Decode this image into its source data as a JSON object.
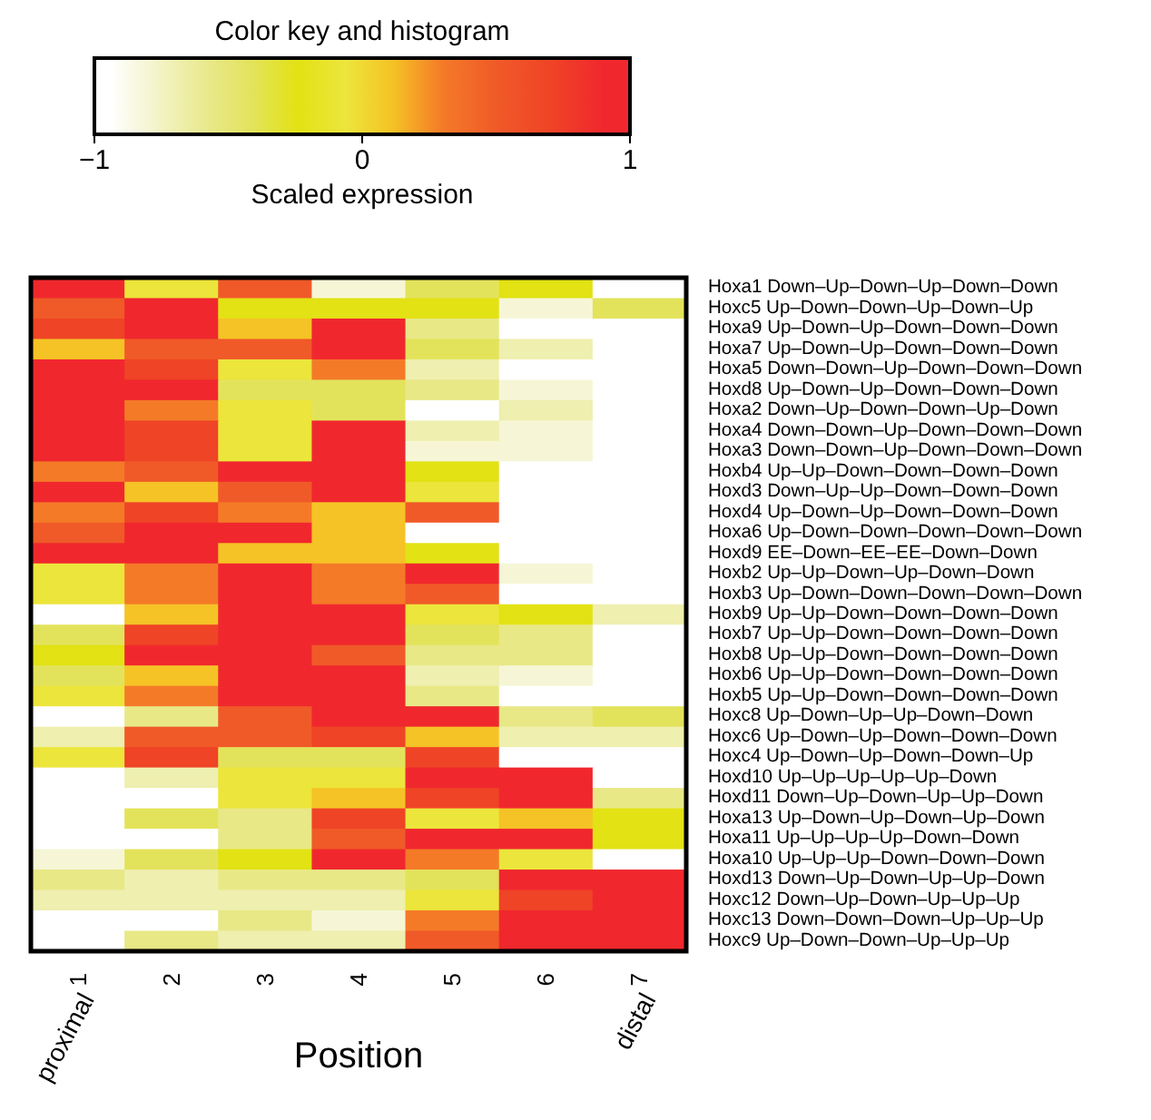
{
  "chart_data": {
    "type": "heatmap",
    "legend_title": "Color key and histogram",
    "clabel": "Scaled expression",
    "xlabel": "Position",
    "annotations": [
      "proximal",
      "distal"
    ],
    "clim": [
      -1,
      1
    ],
    "cticks": [
      -1,
      0,
      1
    ],
    "categories": [
      "1",
      "2",
      "3",
      "4",
      "5",
      "6",
      "7"
    ],
    "y_categories": [
      "Hoxa1 Down–Up–Down–Up–Down–Down",
      "Hoxc5 Up–Down–Down–Up–Down–Up",
      "Hoxa9 Up–Down–Up–Down–Down–Down",
      "Hoxa7 Up–Down–Up–Down–Down–Down",
      "Hoxa5 Down–Down–Up–Down–Down–Down",
      "Hoxd8 Up–Down–Up–Down–Down–Down",
      "Hoxa2 Down–Up–Down–Down–Up–Down",
      "Hoxa4 Down–Down–Up–Down–Down–Down",
      "Hoxa3 Down–Down–Up–Down–Down–Down",
      "Hoxb4 Up–Up–Down–Down–Down–Down",
      "Hoxd3 Down–Up–Up–Down–Down–Down",
      "Hoxd4 Up–Down–Up–Down–Down–Down",
      "Hoxa6 Up–Down–Down–Down–Down–Down",
      "Hoxd9 EE–Down–EE–EE–Down–Down",
      "Hoxb2 Up–Up–Down–Up–Down–Down",
      "Hoxb3 Up–Down–Down–Down–Down–Down",
      "Hoxb9 Up–Up–Down–Down–Down–Down",
      "Hoxb7 Up–Up–Down–Down–Down–Down",
      "Hoxb8 Up–Up–Down–Down–Down–Down",
      "Hoxb6 Up–Up–Down–Down–Down–Down",
      "Hoxb5 Up–Up–Down–Down–Down–Down",
      "Hoxc8 Up–Down–Up–Up–Down–Down",
      "Hoxc6 Up–Down–Up–Down–Down–Down",
      "Hoxc4 Up–Down–Up–Down–Down–Up",
      "Hoxd10 Up–Up–Up–Up–Up–Down",
      "Hoxd11 Down–Up–Down–Up–Up–Down",
      "Hoxa13 Up–Down–Up–Down–Up–Down",
      "Hoxa11 Up–Up–Up–Up–Down–Down",
      "Hoxa10 Up–Up–Up–Down–Down–Down",
      "Hoxd13 Down–Up–Down–Up–Up–Down",
      "Hoxc12 Down–Up–Down–Up–Up–Up",
      "Hoxc13 Down–Down–Down–Up–Up–Up",
      "Hoxc9 Up–Down–Down–Up–Up–Up"
    ],
    "cells": [
      [
        0.9,
        -0.06,
        0.5,
        -0.81,
        -0.41,
        -0.24,
        -0.94
      ],
      [
        0.5,
        0.9,
        -0.24,
        -0.24,
        -0.24,
        -0.81,
        -0.41
      ],
      [
        0.7,
        0.9,
        0.11,
        0.9,
        -0.56,
        -0.94,
        -0.94
      ],
      [
        0.11,
        0.5,
        0.5,
        0.9,
        -0.41,
        -0.69,
        -0.94
      ],
      [
        0.9,
        0.7,
        -0.06,
        0.3,
        -0.69,
        -0.94,
        -0.94
      ],
      [
        0.9,
        0.9,
        -0.41,
        -0.41,
        -0.56,
        -0.81,
        -0.94
      ],
      [
        0.9,
        0.3,
        -0.06,
        -0.41,
        -0.94,
        -0.69,
        -0.94
      ],
      [
        0.9,
        0.7,
        -0.06,
        0.9,
        -0.69,
        -0.81,
        -0.94
      ],
      [
        0.9,
        0.7,
        -0.06,
        0.9,
        -0.81,
        -0.81,
        -0.94
      ],
      [
        0.3,
        0.5,
        0.9,
        0.9,
        -0.24,
        -0.94,
        -0.94
      ],
      [
        0.9,
        0.11,
        0.5,
        0.9,
        -0.06,
        -0.94,
        -0.94
      ],
      [
        0.3,
        0.7,
        0.3,
        0.11,
        0.5,
        -0.94,
        -0.94
      ],
      [
        0.5,
        0.9,
        0.9,
        0.11,
        -0.94,
        -0.94,
        -0.94
      ],
      [
        0.9,
        0.9,
        0.11,
        0.11,
        -0.24,
        -0.94,
        -0.94
      ],
      [
        -0.06,
        0.3,
        0.9,
        0.3,
        0.9,
        -0.81,
        -0.94
      ],
      [
        -0.06,
        0.3,
        0.9,
        0.3,
        0.5,
        -0.94,
        -0.94
      ],
      [
        -0.94,
        0.11,
        0.9,
        0.9,
        -0.06,
        -0.24,
        -0.69
      ],
      [
        -0.41,
        0.7,
        0.9,
        0.9,
        -0.41,
        -0.56,
        -0.94
      ],
      [
        -0.24,
        0.9,
        0.9,
        0.5,
        -0.56,
        -0.56,
        -0.94
      ],
      [
        -0.41,
        0.11,
        0.9,
        0.9,
        -0.69,
        -0.81,
        -0.94
      ],
      [
        -0.06,
        0.3,
        0.9,
        0.9,
        -0.56,
        -0.94,
        -0.94
      ],
      [
        -0.94,
        -0.56,
        0.5,
        0.9,
        0.9,
        -0.56,
        -0.41
      ],
      [
        -0.69,
        0.5,
        0.5,
        0.7,
        0.11,
        -0.69,
        -0.69
      ],
      [
        -0.06,
        0.7,
        -0.41,
        -0.41,
        0.7,
        -0.94,
        -0.94
      ],
      [
        -0.94,
        -0.69,
        -0.06,
        -0.06,
        0.9,
        0.9,
        -0.94
      ],
      [
        -0.94,
        -0.94,
        -0.06,
        0.11,
        0.7,
        0.9,
        -0.56
      ],
      [
        -0.94,
        -0.41,
        -0.56,
        0.7,
        -0.06,
        0.11,
        -0.24
      ],
      [
        -0.94,
        -0.94,
        -0.56,
        0.5,
        0.9,
        0.9,
        -0.24
      ],
      [
        -0.81,
        -0.41,
        -0.24,
        0.9,
        0.3,
        -0.06,
        -0.94
      ],
      [
        -0.56,
        -0.69,
        -0.56,
        -0.56,
        -0.41,
        0.9,
        0.9
      ],
      [
        -0.69,
        -0.69,
        -0.69,
        -0.69,
        -0.06,
        0.7,
        0.9
      ],
      [
        -0.94,
        -0.94,
        -0.56,
        -0.81,
        0.3,
        0.9,
        0.9
      ],
      [
        -0.94,
        -0.56,
        -0.69,
        -0.69,
        0.5,
        0.9,
        0.9
      ]
    ]
  }
}
